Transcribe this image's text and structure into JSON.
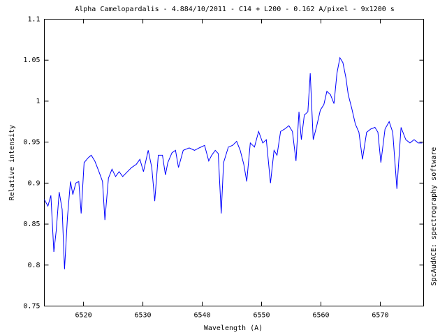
{
  "chart_data": {
    "type": "line",
    "title": "Alpha Camelopardalis - 4.884/10/2011 - C14 + L200 - 0.162 A/pixel - 9x1200 s",
    "x_label": "Wavelength (A)",
    "y_label": "Relative intensity",
    "annotation": "SpcAudACE: spectrography software",
    "color": "#0000ff",
    "grid": false,
    "xlim": [
      6513.4,
      6577.3
    ],
    "ylim": [
      0.75,
      1.1
    ],
    "xticks": [
      6520,
      6530,
      6540,
      6550,
      6560,
      6570
    ],
    "yticks": [
      0.75,
      0.8,
      0.85,
      0.9,
      0.95,
      1,
      1.05,
      1.1
    ],
    "x": [
      6513.4,
      6514.0,
      6514.5,
      6515.0,
      6515.4,
      6515.9,
      6516.4,
      6516.8,
      6517.3,
      6517.8,
      6518.2,
      6518.7,
      6519.2,
      6519.6,
      6520.1,
      6520.8,
      6521.3,
      6521.9,
      6522.6,
      6523.2,
      6523.6,
      6524.2,
      6524.8,
      6525.4,
      6526.0,
      6526.6,
      6527.4,
      6528.1,
      6528.9,
      6529.5,
      6530.1,
      6530.9,
      6531.5,
      6532.0,
      6532.6,
      6533.3,
      6533.8,
      6534.2,
      6534.9,
      6535.5,
      6536.0,
      6536.8,
      6537.8,
      6538.7,
      6539.5,
      6540.4,
      6541.1,
      6541.6,
      6542.2,
      6542.7,
      6543.2,
      6543.6,
      6544.4,
      6545.1,
      6545.8,
      6546.4,
      6547.0,
      6547.5,
      6548.1,
      6548.8,
      6549.5,
      6550.2,
      6550.8,
      6551.5,
      6552.1,
      6552.6,
      6553.2,
      6553.9,
      6554.6,
      6555.2,
      6555.8,
      6556.3,
      6556.7,
      6557.2,
      6557.8,
      6558.2,
      6558.7,
      6559.3,
      6559.9,
      6560.5,
      6561.0,
      6561.6,
      6562.2,
      6562.7,
      6563.2,
      6563.7,
      6564.2,
      6564.6,
      6565.2,
      6565.8,
      6566.4,
      6567.0,
      6567.7,
      6568.4,
      6569.1,
      6569.6,
      6570.1,
      6570.8,
      6571.5,
      6572.1,
      6572.8,
      6573.5,
      6574.3,
      6575.0,
      6575.7,
      6576.4,
      6577.1
    ],
    "values": [
      0.88,
      0.872,
      0.885,
      0.816,
      0.842,
      0.889,
      0.868,
      0.795,
      0.859,
      0.902,
      0.886,
      0.9,
      0.902,
      0.863,
      0.925,
      0.931,
      0.934,
      0.927,
      0.914,
      0.902,
      0.855,
      0.906,
      0.917,
      0.908,
      0.914,
      0.908,
      0.914,
      0.919,
      0.923,
      0.929,
      0.914,
      0.94,
      0.919,
      0.878,
      0.934,
      0.934,
      0.91,
      0.925,
      0.937,
      0.94,
      0.919,
      0.94,
      0.943,
      0.94,
      0.943,
      0.946,
      0.927,
      0.934,
      0.94,
      0.936,
      0.863,
      0.925,
      0.944,
      0.946,
      0.951,
      0.94,
      0.923,
      0.902,
      0.949,
      0.944,
      0.963,
      0.949,
      0.953,
      0.9,
      0.94,
      0.934,
      0.963,
      0.966,
      0.97,
      0.963,
      0.927,
      0.987,
      0.953,
      0.983,
      0.987,
      1.034,
      0.953,
      0.97,
      0.989,
      0.996,
      1.012,
      1.008,
      0.997,
      1.034,
      1.053,
      1.047,
      1.029,
      1.008,
      0.991,
      0.972,
      0.962,
      0.929,
      0.962,
      0.966,
      0.968,
      0.962,
      0.925,
      0.966,
      0.975,
      0.962,
      0.893,
      0.968,
      0.953,
      0.949,
      0.953,
      0.949,
      0.949
    ]
  }
}
